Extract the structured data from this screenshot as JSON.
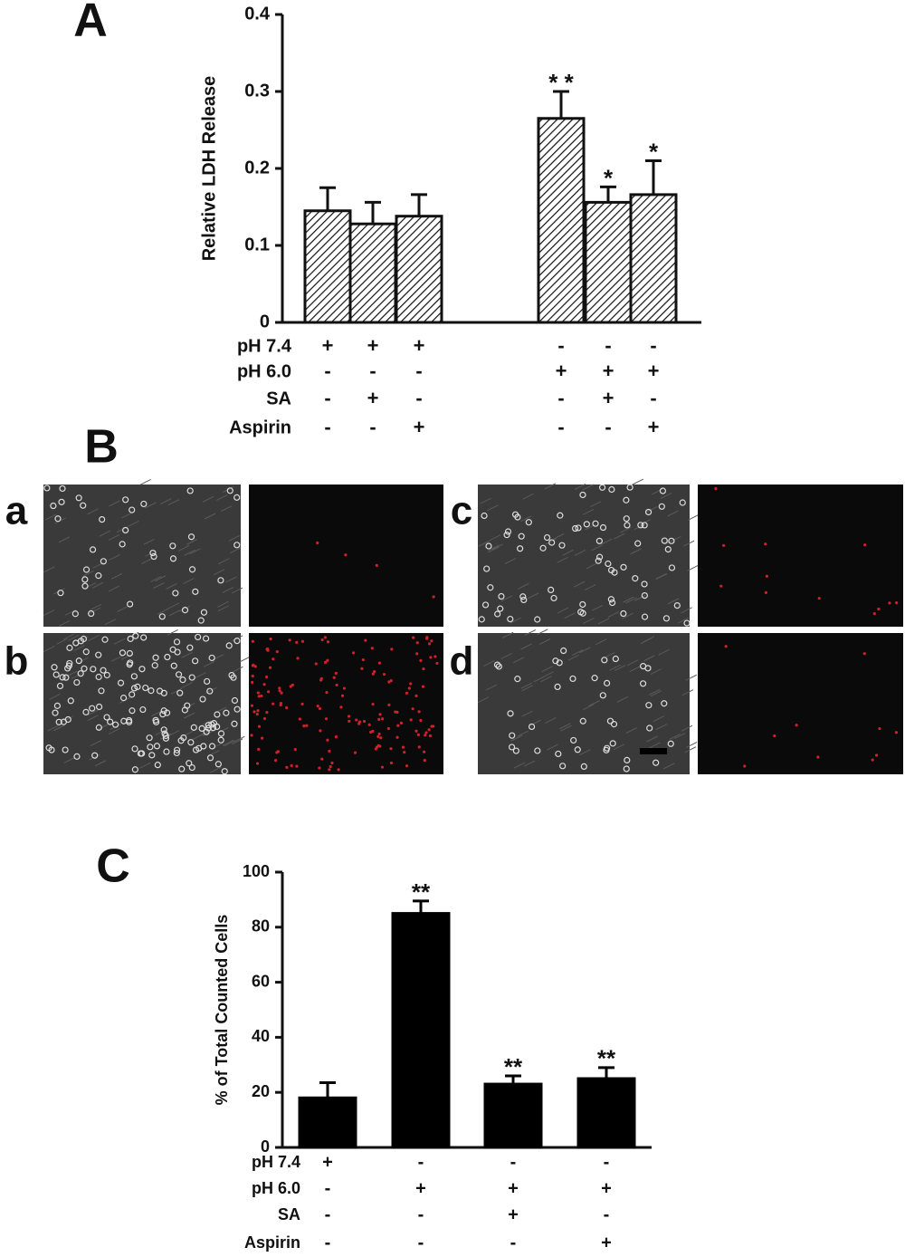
{
  "chart_data": [
    {
      "type": "bar",
      "panel_label": "A",
      "y_label": "Relative LDH Release",
      "hatch": true,
      "color": "#111111",
      "values": [
        0.145,
        0.128,
        0.138,
        0.265,
        0.156,
        0.166
      ],
      "errors": [
        0.03,
        0.028,
        0.028,
        0.035,
        0.02,
        0.044
      ],
      "annotations": [
        null,
        null,
        null,
        "* *",
        "*",
        "*"
      ],
      "ylim": [
        0,
        0.4
      ],
      "yticks": [
        0,
        0.1,
        0.2,
        0.3,
        0.4
      ],
      "conditions": [
        {
          "label": "pH 7.4",
          "signs": [
            "+",
            "+",
            "+",
            "-",
            "-",
            "-"
          ]
        },
        {
          "label": "pH 6.0",
          "signs": [
            "-",
            "-",
            "-",
            "+",
            "+",
            "+"
          ]
        },
        {
          "label": "SA",
          "signs": [
            "-",
            "+",
            "-",
            "-",
            "+",
            "-"
          ]
        },
        {
          "label": "Aspirin",
          "signs": [
            "-",
            "-",
            "+",
            "-",
            "-",
            "+"
          ]
        }
      ]
    },
    {
      "type": "bar",
      "panel_label": "C",
      "y_label": "% of Total Counted Cells",
      "hatch": false,
      "color": "#000000",
      "values": [
        18,
        85,
        23,
        25
      ],
      "errors": [
        5.5,
        4.5,
        3,
        4
      ],
      "annotations": [
        null,
        "**",
        "**",
        "**"
      ],
      "ylim": [
        0,
        100
      ],
      "yticks": [
        0,
        20,
        40,
        60,
        80,
        100
      ],
      "conditions": [
        {
          "label": "pH 7.4",
          "signs": [
            "+",
            "-",
            "-",
            "-"
          ]
        },
        {
          "label": "pH 6.0",
          "signs": [
            "-",
            "+",
            "+",
            "+"
          ]
        },
        {
          "label": "SA",
          "signs": [
            "-",
            "-",
            "+",
            "-"
          ]
        },
        {
          "label": "Aspirin",
          "signs": [
            "-",
            "-",
            "-",
            "+"
          ]
        }
      ]
    }
  ],
  "figure_b": {
    "label": "B",
    "sublabels": [
      "a",
      "b",
      "c",
      "d"
    ]
  }
}
